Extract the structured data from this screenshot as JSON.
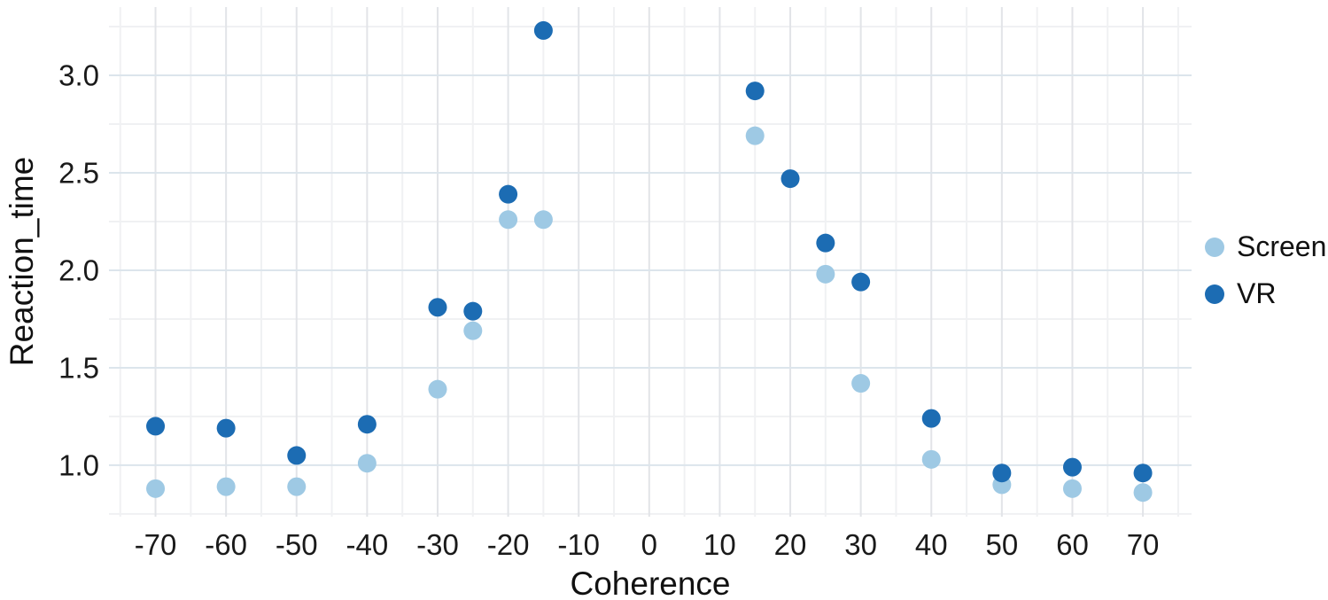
{
  "chart_data": {
    "type": "scatter",
    "title": "",
    "xlabel": "Coherence",
    "ylabel": "Reaction_time",
    "xlim": [
      -76.6,
      76.9
    ],
    "ylim": [
      0.736,
      3.35
    ],
    "grid": "major and minor, light gray on white",
    "legend_position": "right",
    "x_tick_values": [
      -70,
      -60,
      -50,
      -40,
      -30,
      -20,
      -10,
      0,
      10,
      20,
      30,
      40,
      50,
      60,
      70
    ],
    "x_tick_labels": [
      "-70",
      "-60",
      "-50",
      "-40",
      "-30",
      "-20",
      "-10",
      "0",
      "10",
      "20",
      "30",
      "40",
      "50",
      "60",
      "70"
    ],
    "x_minor_tick_values": [
      -75,
      -65,
      -55,
      -45,
      -35,
      -25,
      -15,
      -5,
      5,
      15,
      25,
      35,
      45,
      55,
      65,
      75
    ],
    "y_tick_values": [
      1.0,
      1.5,
      2.0,
      2.5,
      3.0
    ],
    "y_tick_labels": [
      "1.0",
      "1.5",
      "2.0",
      "2.5",
      "3.0"
    ],
    "y_minor_tick_values": [
      0.75,
      1.25,
      1.75,
      2.25,
      2.75,
      3.25
    ],
    "series": [
      {
        "name": "Screen",
        "color": "#9EC9E4",
        "points": [
          [
            -70,
            0.88
          ],
          [
            -60,
            0.89
          ],
          [
            -50,
            0.89
          ],
          [
            -40,
            1.01
          ],
          [
            -30,
            1.39
          ],
          [
            -25,
            1.69
          ],
          [
            -20,
            2.26
          ],
          [
            -15,
            2.26
          ],
          [
            15,
            2.69
          ],
          [
            25,
            1.98
          ],
          [
            30,
            1.42
          ],
          [
            40,
            1.03
          ],
          [
            50,
            0.9
          ],
          [
            60,
            0.88
          ],
          [
            70,
            0.86
          ]
        ]
      },
      {
        "name": "VR",
        "color": "#1C6CB3",
        "points": [
          [
            -70,
            1.2
          ],
          [
            -60,
            1.19
          ],
          [
            -50,
            1.05
          ],
          [
            -40,
            1.21
          ],
          [
            -30,
            1.81
          ],
          [
            -25,
            1.79
          ],
          [
            -20,
            2.39
          ],
          [
            -15,
            3.23
          ],
          [
            15,
            2.92
          ],
          [
            20,
            2.47
          ],
          [
            25,
            2.14
          ],
          [
            30,
            1.94
          ],
          [
            40,
            1.24
          ],
          [
            50,
            0.96
          ],
          [
            60,
            0.99
          ],
          [
            70,
            0.96
          ]
        ]
      }
    ]
  },
  "colors": {
    "screen": "#9EC9E4",
    "vr": "#1C6CB3",
    "grid_major_h": "#DCE5EC",
    "grid_major_v": "#E2E4E8",
    "grid_minor": "#F0F1F3",
    "text": "#1A1A1A"
  },
  "legend": {
    "items": [
      {
        "label": "Screen"
      },
      {
        "label": "VR"
      }
    ]
  }
}
